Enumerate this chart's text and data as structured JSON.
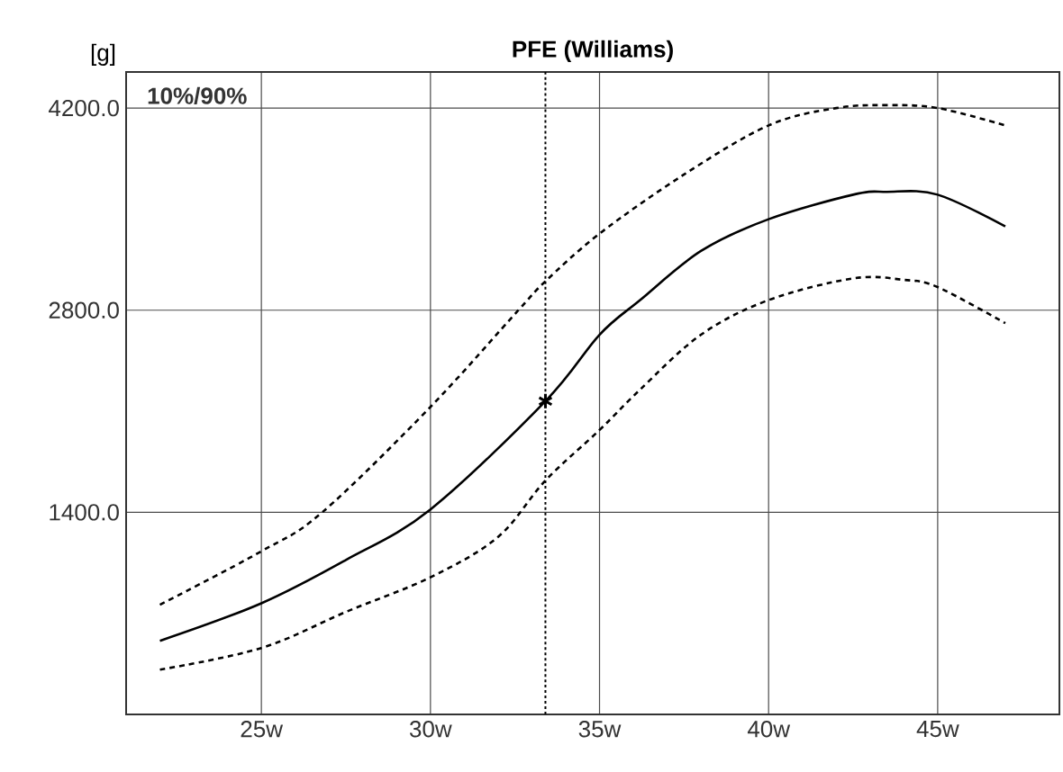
{
  "chart_data": {
    "type": "line",
    "title": "PFE (Williams)",
    "ylabel": "[g]",
    "annotations": [
      "10%/90%"
    ],
    "xlim": [
      21,
      48.6
    ],
    "ylim": [
      0,
      4450
    ],
    "xticks": [
      {
        "value": 25,
        "label": "25w"
      },
      {
        "value": 30,
        "label": "30w"
      },
      {
        "value": 35,
        "label": "35w"
      },
      {
        "value": 40,
        "label": "40w"
      },
      {
        "value": 45,
        "label": "45w"
      }
    ],
    "yticks": [
      {
        "value": 1400,
        "label": "1400.0"
      },
      {
        "value": 2800,
        "label": "2800.0"
      },
      {
        "value": 4200,
        "label": "4200.0"
      }
    ],
    "grid": true,
    "ref_lines": [
      {
        "axis": "x",
        "value": 33.4,
        "line_style": "dotted",
        "color": "#000000"
      }
    ],
    "series": [
      {
        "color": "#000000",
        "line_style": "dashed",
        "x": [
          22,
          25,
          26.8,
          30,
          32.6,
          33.4,
          35,
          37.5,
          40,
          42,
          43.5,
          45,
          47
        ],
        "values": [
          760,
          1130,
          1400,
          2130,
          2800,
          3000,
          3330,
          3740,
          4080,
          4200,
          4220,
          4200,
          4080
        ]
      },
      {
        "color": "#000000",
        "line_style": "solid",
        "x": [
          22,
          25,
          27.5,
          30,
          33.4,
          35,
          36.2,
          38,
          40,
          42.5,
          43.5,
          45,
          47
        ],
        "values": [
          510,
          770,
          1070,
          1420,
          2170,
          2630,
          2870,
          3210,
          3430,
          3600,
          3620,
          3600,
          3380
        ]
      },
      {
        "color": "#000000",
        "line_style": "dashed",
        "x": [
          22,
          25,
          27.5,
          30,
          32,
          33.4,
          35,
          36.2,
          38,
          40,
          42.5,
          44,
          45,
          47
        ],
        "values": [
          310,
          460,
          710,
          950,
          1230,
          1620,
          1970,
          2250,
          2630,
          2870,
          3020,
          3010,
          2960,
          2710
        ]
      },
      {
        "type": "scatter",
        "marker": "cross",
        "color": "#000000",
        "x": [
          33.4
        ],
        "values": [
          2170
        ]
      }
    ]
  }
}
